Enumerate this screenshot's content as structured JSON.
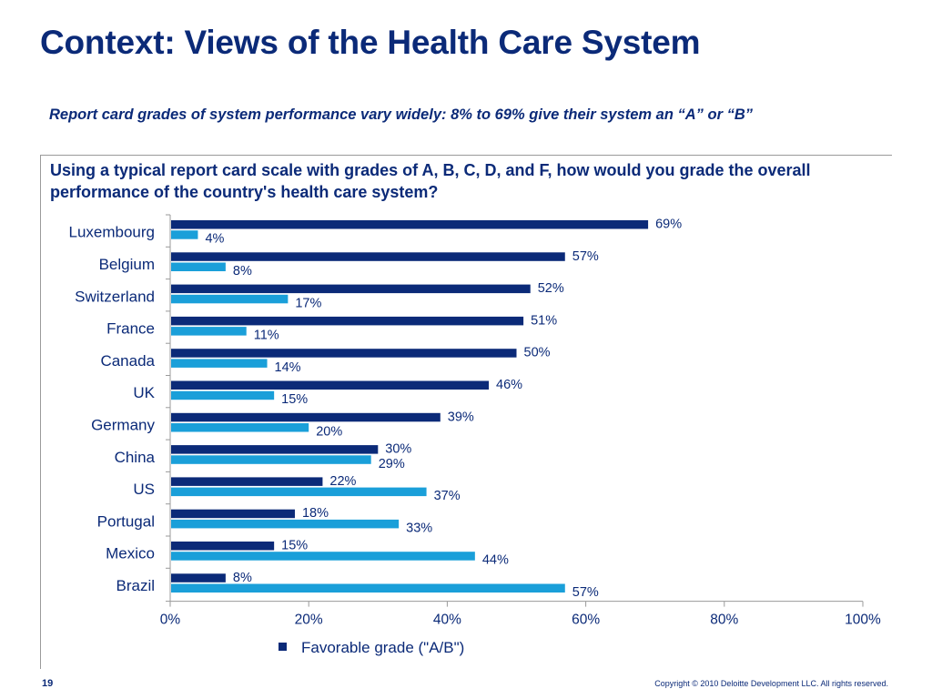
{
  "slide": {
    "title": "Context: Views of the Health Care System",
    "subtitle": "Report card grades of system performance vary widely: 8% to 69% give their system an “A” or “B”",
    "page_number": "19",
    "copyright": "Copyright © 2010 Deloitte Development LLC. All rights reserved."
  },
  "chart_data": {
    "type": "bar",
    "orientation": "horizontal",
    "title": "Using a typical report card scale with grades of A, B, C, D, and F, how would you grade the overall performance of the country's health care system?",
    "categories": [
      "Luxembourg",
      "Belgium",
      "Switzerland",
      "France",
      "Canada",
      "UK",
      "Germany",
      "China",
      "US",
      "Portugal",
      "Mexico",
      "Brazil"
    ],
    "series": [
      {
        "name": "Favorable grade (\"A/B\")",
        "values": [
          69,
          57,
          52,
          51,
          50,
          46,
          39,
          30,
          22,
          18,
          15,
          8
        ],
        "color": "#0b2a78"
      },
      {
        "values": [
          4,
          8,
          17,
          11,
          14,
          15,
          20,
          29,
          37,
          33,
          44,
          57
        ],
        "color": "#1a9fd9"
      }
    ],
    "value_suffix": "%",
    "xlim": [
      0,
      100
    ],
    "x_ticks": [
      "0%",
      "20%",
      "40%",
      "60%",
      "80%",
      "100%"
    ],
    "grid": false,
    "legend_position": "bottom"
  }
}
